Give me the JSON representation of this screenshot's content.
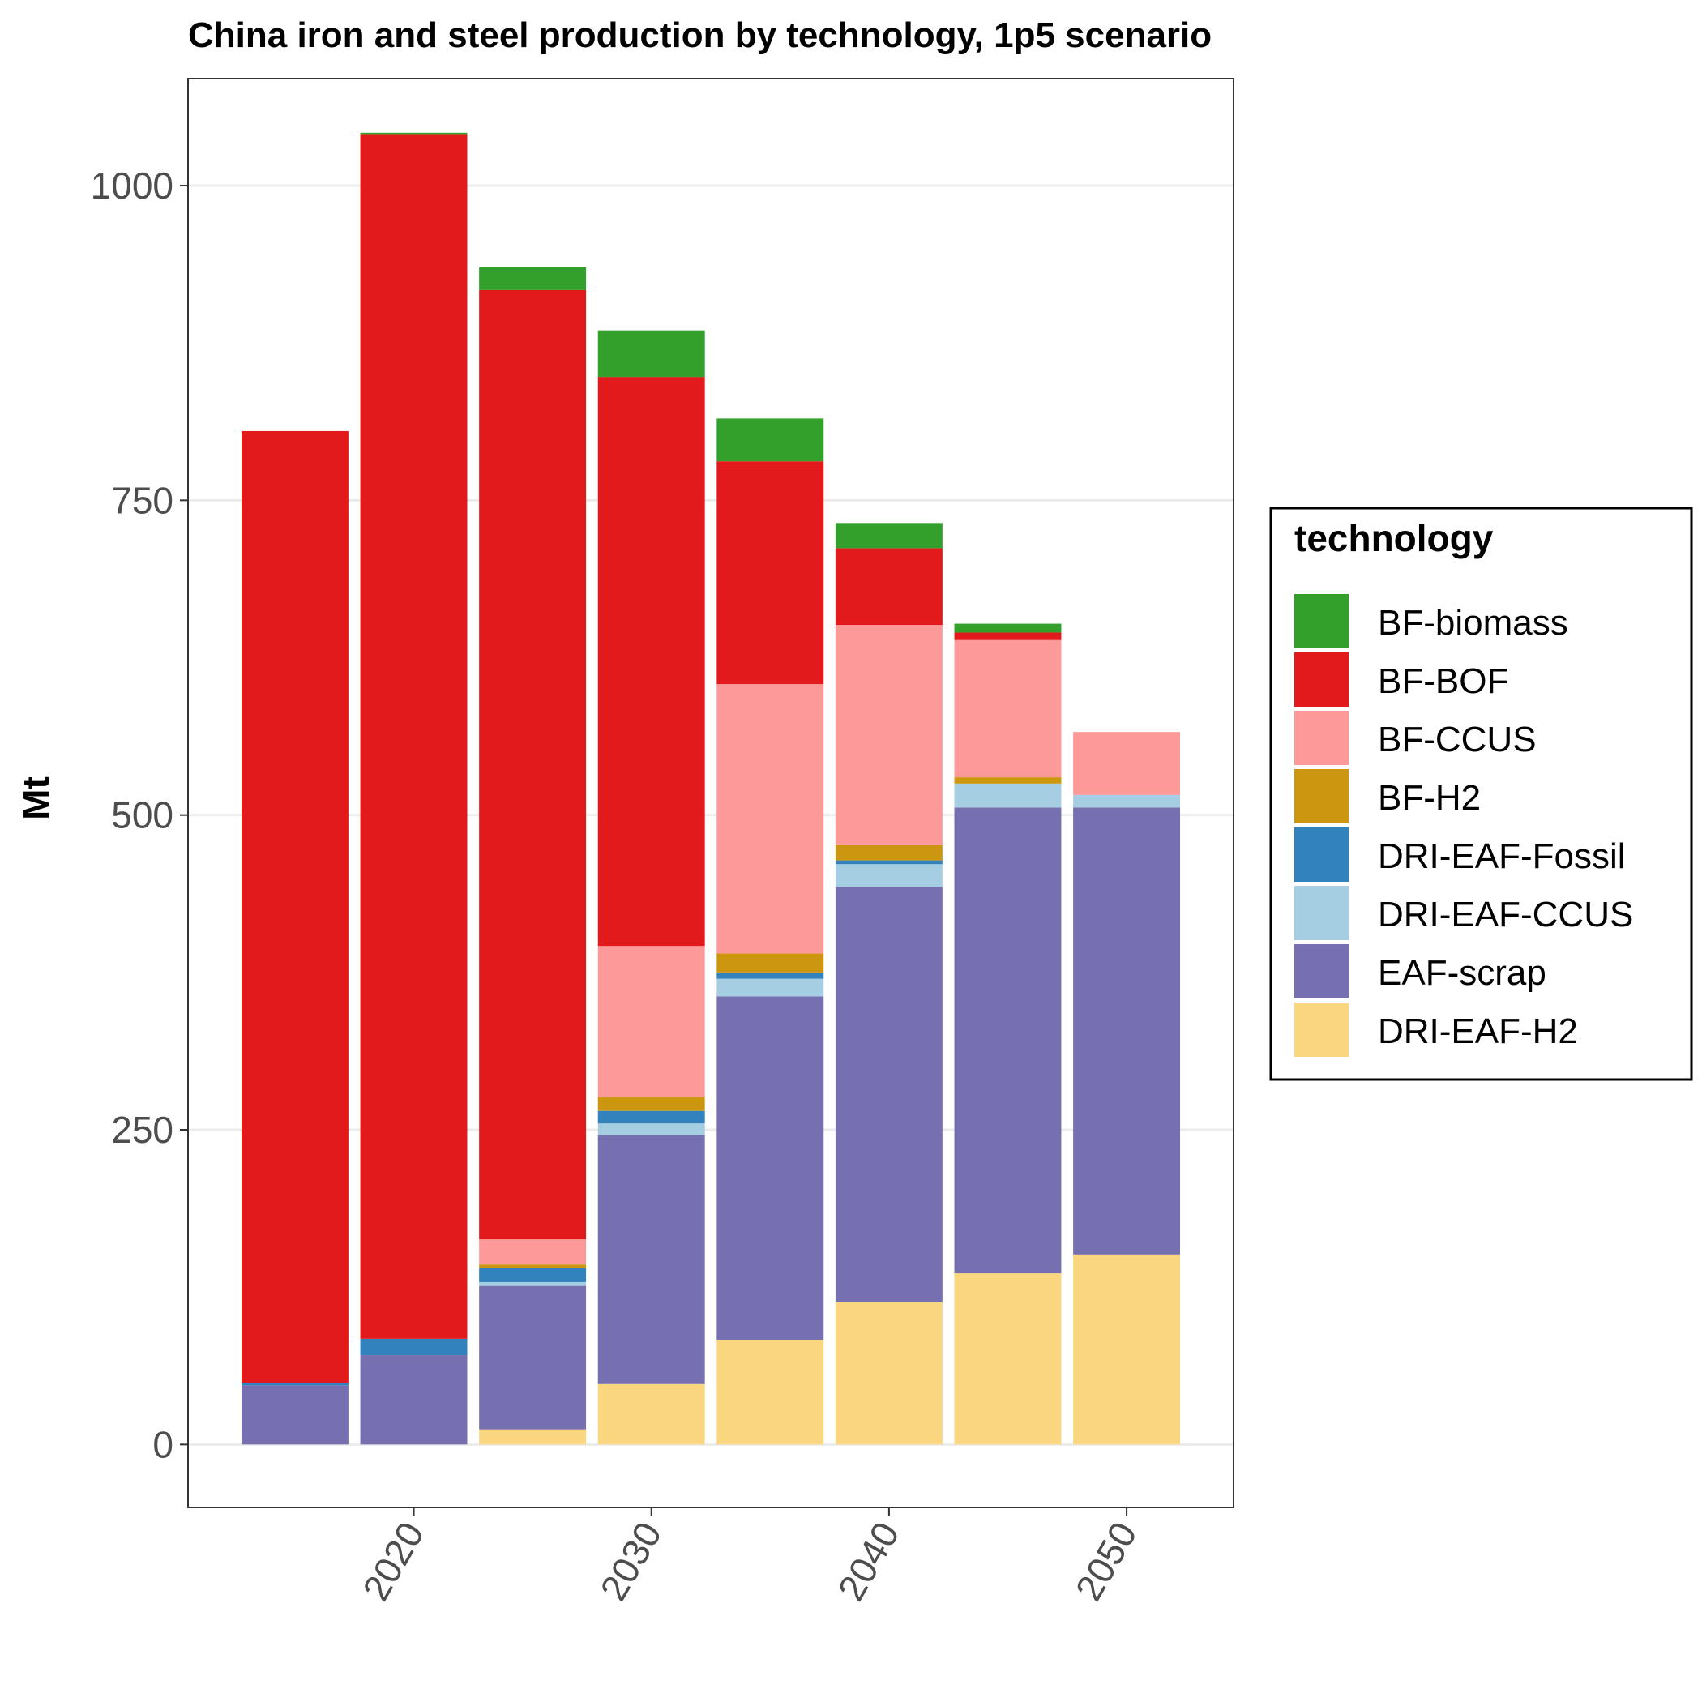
{
  "chart_data": {
    "type": "bar",
    "stacked": true,
    "title": "China iron and steel production by technology, 1p5 scenario",
    "xlabel": "",
    "ylabel": "Mt",
    "x": [
      2015,
      2020,
      2025,
      2030,
      2035,
      2040,
      2045,
      2050
    ],
    "xticks": [
      2020,
      2030,
      2040,
      2050
    ],
    "yticks": [
      0,
      250,
      500,
      750,
      1000
    ],
    "xlim": [
      2010.5,
      2054.5
    ],
    "ylim": [
      -50,
      1085
    ],
    "grid": "horizontal",
    "legend": {
      "title": "technology",
      "position": "right"
    },
    "series": [
      {
        "name": "DRI-EAF-H2",
        "color": "#fad67f",
        "values": [
          0,
          0,
          12,
          48,
          83,
          113,
          136,
          151
        ]
      },
      {
        "name": "EAF-scrap",
        "color": "#7670b1",
        "values": [
          47,
          71,
          114,
          198,
          273,
          330,
          370,
          355
        ]
      },
      {
        "name": "DRI-EAF-CCUS",
        "color": "#a6cee3",
        "values": [
          0,
          0,
          3,
          9,
          14,
          18,
          19,
          10
        ]
      },
      {
        "name": "DRI-EAF-Fossil",
        "color": "#3182bd",
        "values": [
          2,
          13,
          11,
          10,
          5,
          3,
          0,
          0
        ]
      },
      {
        "name": "BF-H2",
        "color": "#cc9611",
        "values": [
          0,
          0,
          3,
          11,
          15,
          12,
          5,
          0
        ]
      },
      {
        "name": "BF-CCUS",
        "color": "#fb9a99",
        "values": [
          0,
          0,
          20,
          120,
          214,
          175,
          109,
          50
        ]
      },
      {
        "name": "BF-BOF",
        "color": "#e31a1c",
        "values": [
          756,
          957,
          754,
          452,
          177,
          61,
          6,
          0
        ]
      },
      {
        "name": "BF-biomass",
        "color": "#33a02c",
        "values": [
          0,
          1,
          18,
          37,
          34,
          20,
          7,
          0
        ]
      }
    ],
    "legend_order": [
      "BF-biomass",
      "BF-BOF",
      "BF-CCUS",
      "BF-H2",
      "DRI-EAF-Fossil",
      "DRI-EAF-CCUS",
      "EAF-scrap",
      "DRI-EAF-H2"
    ]
  }
}
